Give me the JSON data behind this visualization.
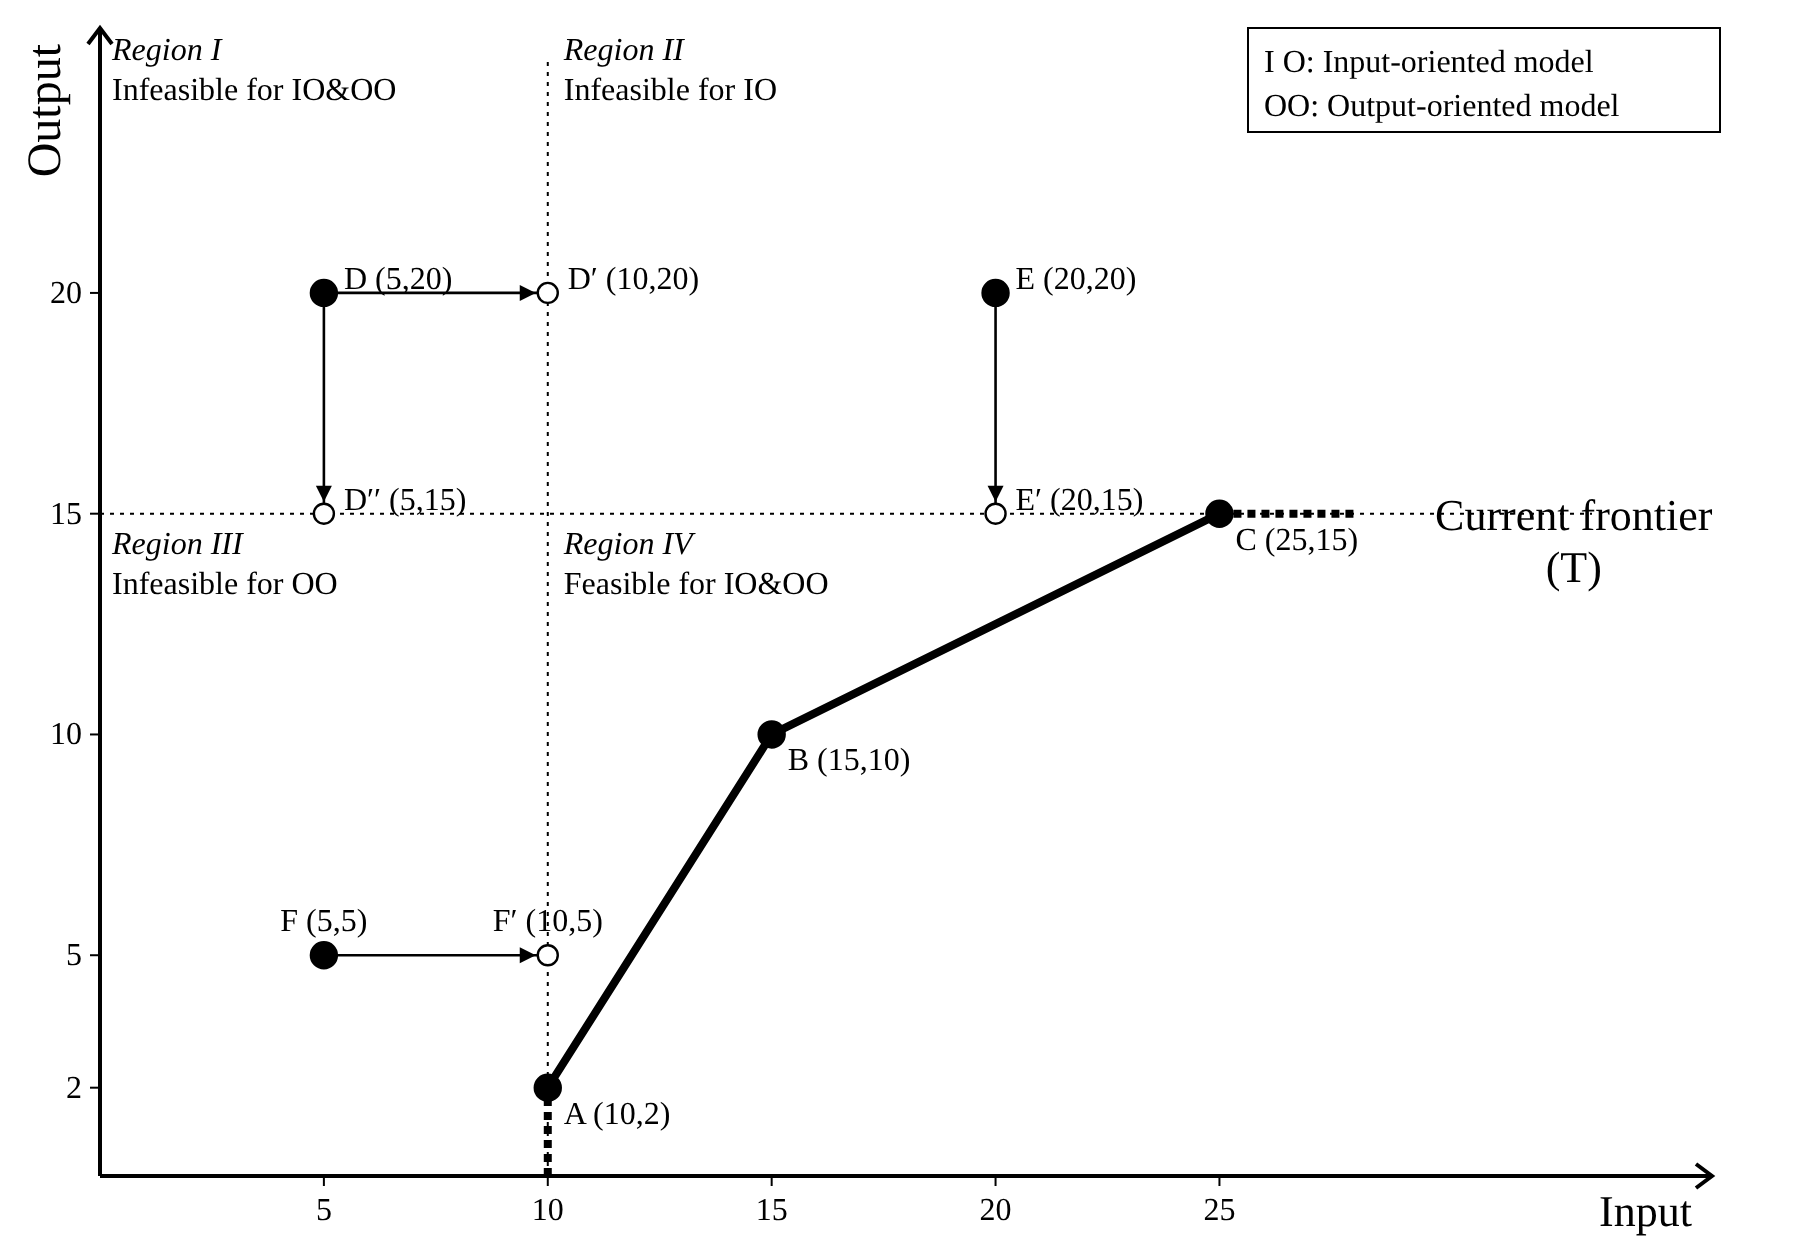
{
  "chart_data": {
    "type": "line",
    "xlabel": "Input",
    "ylabel": "Output",
    "xlim": [
      0,
      36
    ],
    "ylim": [
      0,
      26
    ],
    "xticks": [
      5,
      10,
      15,
      20,
      25
    ],
    "yticks": [
      2,
      5,
      10,
      15,
      20
    ],
    "grid": false,
    "series": [
      {
        "x": [
          10,
          15,
          25
        ],
        "values": [
          2,
          10,
          15
        ],
        "color": "#000000",
        "marker": "circle",
        "line_style": "solid"
      },
      {
        "type": "line",
        "x": [
          10,
          10
        ],
        "values": [
          0,
          2
        ],
        "color": "#000000",
        "marker": "none",
        "line_style": "dotted"
      },
      {
        "type": "line",
        "x": [
          25,
          28
        ],
        "values": [
          15,
          15
        ],
        "color": "#000000",
        "marker": "none",
        "line_style": "dotted"
      },
      {
        "type": "scatter",
        "x": [
          5,
          20,
          5
        ],
        "values": [
          20,
          20,
          5
        ],
        "color": "#000000",
        "marker": "circle"
      },
      {
        "type": "scatter",
        "x": [
          10,
          5,
          20,
          10
        ],
        "values": [
          20,
          15,
          15,
          5
        ],
        "color": "#ffffff",
        "marker": "circle"
      },
      {
        "type": "line",
        "x": [
          5,
          10
        ],
        "values": [
          20,
          20
        ],
        "color": "#000000",
        "marker": "none",
        "line_style": "solid"
      },
      {
        "type": "line",
        "x": [
          5,
          5
        ],
        "values": [
          20,
          15
        ],
        "color": "#000000",
        "marker": "none",
        "line_style": "solid"
      },
      {
        "type": "line",
        "x": [
          20,
          20
        ],
        "values": [
          20,
          15
        ],
        "color": "#000000",
        "marker": "none",
        "line_style": "solid"
      },
      {
        "type": "line",
        "x": [
          5,
          10
        ],
        "values": [
          5,
          5
        ],
        "color": "#000000",
        "marker": "none",
        "line_style": "solid"
      }
    ],
    "ref_lines": [
      {
        "axis": "x",
        "value": 10,
        "line_style": "dotted"
      },
      {
        "axis": "y",
        "value": 15,
        "line_style": "dotted"
      }
    ],
    "annotations": [
      "Region I\nInfeasible for IO&OO",
      "Region II\nInfeasible for IO",
      "Region III\nInfeasible for OO",
      "Region IV\nFeasible for IO&OO",
      "I O: Input-oriented model\nOO: Output-oriented model",
      {
        "text": "Current frontier\n(T)",
        "x": 28,
        "y": 15
      },
      {
        "text": "A (10,2)",
        "x": 10,
        "y": 2
      },
      {
        "text": "B (15,10)",
        "x": 15,
        "y": 10
      },
      {
        "text": "C (25,15)",
        "x": 25,
        "y": 15
      },
      {
        "text": "D (5,20)",
        "x": 5,
        "y": 20
      },
      {
        "text": "D′ (10,20)",
        "x": 10,
        "y": 20
      },
      {
        "text": "D′′ (5,15)",
        "x": 5,
        "y": 15
      },
      {
        "text": "E (20,20)",
        "x": 20,
        "y": 20
      },
      {
        "text": "E′ (20,15)",
        "x": 20,
        "y": 15
      },
      {
        "text": "F (5,5)",
        "x": 5,
        "y": 5
      },
      {
        "text": "F′ (10,5)",
        "x": 10,
        "y": 5
      }
    ]
  }
}
